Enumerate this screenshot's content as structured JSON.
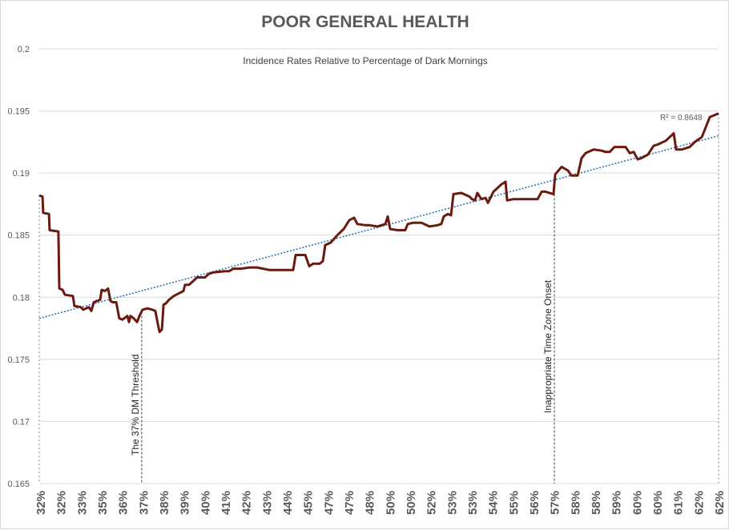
{
  "chart_data": {
    "type": "line",
    "title": "POOR GENERAL HEALTH",
    "subtitle": "Incidence Rates Relative to Percentage of Dark Mornings",
    "xlabel": "",
    "ylabel": "",
    "ylim": [
      0.165,
      0.2
    ],
    "xlim": [
      32,
      62.9
    ],
    "yticks": [
      "0.165",
      "0.17",
      "0.175",
      "0.18",
      "0.185",
      "0.19",
      "0.195",
      "0.2"
    ],
    "xtick_labels": [
      "32%",
      "32%",
      "33%",
      "35%",
      "36%",
      "37%",
      "38%",
      "39%",
      "40%",
      "41%",
      "42%",
      "43%",
      "44%",
      "45%",
      "47%",
      "47%",
      "48%",
      "50%",
      "50%",
      "52%",
      "53%",
      "53%",
      "54%",
      "55%",
      "56%",
      "57%",
      "58%",
      "58%",
      "59%",
      "60%",
      "60%",
      "61%",
      "62%",
      "62%"
    ],
    "grid": "horizontal",
    "series_color": "#6b1a10",
    "trend_color": "#2e75b6",
    "series": [
      {
        "points": [
          [
            32.0,
            0.1882
          ],
          [
            32.15,
            0.1881
          ],
          [
            32.18,
            0.1868
          ],
          [
            32.44,
            0.1867
          ],
          [
            32.47,
            0.1854
          ],
          [
            32.87,
            0.1853
          ],
          [
            32.91,
            0.1807
          ],
          [
            33.06,
            0.1806
          ],
          [
            33.17,
            0.1802
          ],
          [
            33.53,
            0.1801
          ],
          [
            33.6,
            0.1793
          ],
          [
            33.89,
            0.1792
          ],
          [
            34.0,
            0.179
          ],
          [
            34.26,
            0.1792
          ],
          [
            34.37,
            0.1789
          ],
          [
            34.48,
            0.1796
          ],
          [
            34.77,
            0.1798
          ],
          [
            34.84,
            0.1806
          ],
          [
            34.99,
            0.1805
          ],
          [
            35.13,
            0.1807
          ],
          [
            35.24,
            0.1797
          ],
          [
            35.35,
            0.1796
          ],
          [
            35.5,
            0.1796
          ],
          [
            35.64,
            0.1783
          ],
          [
            35.79,
            0.1782
          ],
          [
            36.01,
            0.1785
          ],
          [
            36.08,
            0.178
          ],
          [
            36.15,
            0.1785
          ],
          [
            36.3,
            0.1783
          ],
          [
            36.45,
            0.178
          ],
          [
            36.56,
            0.1785
          ],
          [
            36.7,
            0.179
          ],
          [
            36.92,
            0.1791
          ],
          [
            37.14,
            0.179
          ],
          [
            37.28,
            0.1789
          ],
          [
            37.39,
            0.1779
          ],
          [
            37.47,
            0.1772
          ],
          [
            37.58,
            0.1774
          ],
          [
            37.65,
            0.1794
          ],
          [
            37.76,
            0.1795
          ],
          [
            37.9,
            0.1798
          ],
          [
            38.12,
            0.1801
          ],
          [
            38.34,
            0.1803
          ],
          [
            38.56,
            0.1805
          ],
          [
            38.63,
            0.181
          ],
          [
            38.81,
            0.181
          ],
          [
            39.0,
            0.1813
          ],
          [
            39.18,
            0.1816
          ],
          [
            39.54,
            0.1816
          ],
          [
            39.73,
            0.1819
          ],
          [
            39.91,
            0.182
          ],
          [
            40.45,
            0.1821
          ],
          [
            40.64,
            0.1821
          ],
          [
            40.82,
            0.1823
          ],
          [
            41.18,
            0.1823
          ],
          [
            41.55,
            0.1824
          ],
          [
            41.91,
            0.1824
          ],
          [
            42.46,
            0.1822
          ],
          [
            43.55,
            0.1822
          ],
          [
            43.66,
            0.1834
          ],
          [
            44.1,
            0.1834
          ],
          [
            44.28,
            0.1825
          ],
          [
            44.46,
            0.1827
          ],
          [
            44.75,
            0.1827
          ],
          [
            44.9,
            0.1829
          ],
          [
            45.01,
            0.1842
          ],
          [
            45.26,
            0.1844
          ],
          [
            45.56,
            0.185
          ],
          [
            45.85,
            0.1855
          ],
          [
            46.1,
            0.1862
          ],
          [
            46.32,
            0.1864
          ],
          [
            46.47,
            0.1859
          ],
          [
            46.83,
            0.1858
          ],
          [
            47.01,
            0.1858
          ],
          [
            47.38,
            0.1857
          ],
          [
            47.74,
            0.1859
          ],
          [
            47.85,
            0.1865
          ],
          [
            47.96,
            0.1855
          ],
          [
            48.29,
            0.1854
          ],
          [
            48.65,
            0.1854
          ],
          [
            48.76,
            0.1859
          ],
          [
            49.02,
            0.186
          ],
          [
            49.38,
            0.186
          ],
          [
            49.75,
            0.1857
          ],
          [
            50.11,
            0.1858
          ],
          [
            50.29,
            0.1859
          ],
          [
            50.4,
            0.1865
          ],
          [
            50.58,
            0.1867
          ],
          [
            50.73,
            0.1866
          ],
          [
            50.84,
            0.1883
          ],
          [
            51.2,
            0.1884
          ],
          [
            51.57,
            0.1881
          ],
          [
            51.68,
            0.1879
          ],
          [
            51.82,
            0.1878
          ],
          [
            51.93,
            0.1884
          ],
          [
            52.11,
            0.1879
          ],
          [
            52.3,
            0.188
          ],
          [
            52.41,
            0.1876
          ],
          [
            52.66,
            0.1885
          ],
          [
            53.03,
            0.1891
          ],
          [
            53.21,
            0.1893
          ],
          [
            53.28,
            0.1878
          ],
          [
            53.57,
            0.1879
          ],
          [
            54.67,
            0.1879
          ],
          [
            54.85,
            0.1885
          ],
          [
            55.03,
            0.1885
          ],
          [
            55.39,
            0.1883
          ],
          [
            55.47,
            0.1899
          ],
          [
            55.76,
            0.1905
          ],
          [
            56.05,
            0.1902
          ],
          [
            56.2,
            0.1898
          ],
          [
            56.49,
            0.1898
          ],
          [
            56.67,
            0.1912
          ],
          [
            56.85,
            0.1916
          ],
          [
            57.22,
            0.1919
          ],
          [
            57.58,
            0.1918
          ],
          [
            57.76,
            0.1917
          ],
          [
            57.95,
            0.1917
          ],
          [
            58.16,
            0.1921
          ],
          [
            58.67,
            0.1921
          ],
          [
            58.86,
            0.1916
          ],
          [
            59.04,
            0.1917
          ],
          [
            59.22,
            0.1911
          ],
          [
            59.4,
            0.1912
          ],
          [
            59.69,
            0.1915
          ],
          [
            59.95,
            0.1922
          ],
          [
            60.13,
            0.1923
          ],
          [
            60.5,
            0.1926
          ],
          [
            60.86,
            0.1932
          ],
          [
            60.97,
            0.1919
          ],
          [
            61.23,
            0.1919
          ],
          [
            61.59,
            0.1921
          ],
          [
            61.81,
            0.1925
          ],
          [
            62.14,
            0.1929
          ],
          [
            62.32,
            0.1937
          ],
          [
            62.5,
            0.1945
          ],
          [
            62.9,
            0.1948
          ]
        ]
      }
    ],
    "trendline": {
      "type": "linear",
      "start": [
        32.0,
        0.1783
      ],
      "end": [
        62.9,
        0.193
      ],
      "r2_label": "R² = 0.8648"
    },
    "annotations": [
      {
        "x": 36.66,
        "label": "The 37% DM Threshold"
      },
      {
        "x": 55.43,
        "label": "Inappropriate Time Zone Onset"
      }
    ],
    "edge_markers": [
      32.0,
      62.9
    ]
  }
}
